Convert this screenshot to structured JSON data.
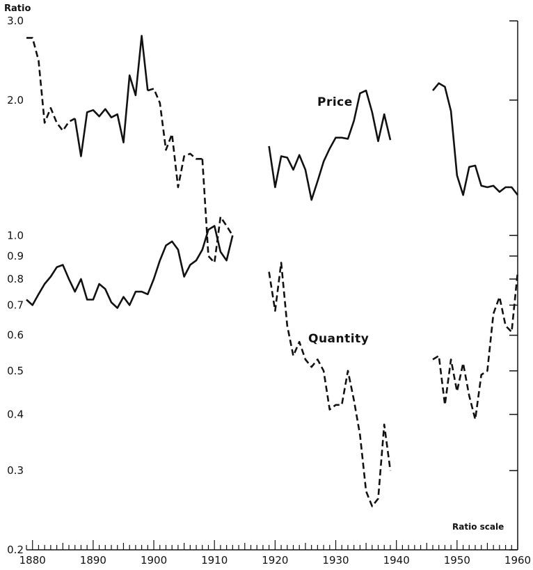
{
  "chart_data": {
    "type": "line",
    "ylabel": "Ratio",
    "scale_note": "Ratio scale",
    "y_scale": "log",
    "ylim": [
      0.2,
      3.0
    ],
    "xlim": [
      1879,
      1960
    ],
    "y_ticks": [
      3.0,
      2.0,
      1.0,
      0.9,
      0.8,
      0.7,
      0.6,
      0.5,
      0.4,
      0.3,
      0.2
    ],
    "y_tick_labels": [
      "3.0",
      "2.0",
      "1.0",
      "0.9",
      "0.8",
      "0.7",
      "0.6",
      "0.5",
      "0.4",
      "0.3",
      "0.2"
    ],
    "x_ticks": [
      1880,
      1890,
      1900,
      1910,
      1920,
      1930,
      1940,
      1950,
      1960
    ],
    "x_tick_labels": [
      "1880",
      "1890",
      "1900",
      "1910",
      "1920",
      "1930",
      "1940",
      "1950",
      "1960"
    ],
    "grid": false,
    "color": "#111111",
    "series": [
      {
        "name": "Price",
        "segments": [
          {
            "style": "dashed",
            "points": [
              [
                1879,
                2.75
              ],
              [
                1880,
                2.75
              ],
              [
                1881,
                2.45
              ],
              [
                1882,
                1.78
              ],
              [
                1883,
                1.92
              ],
              [
                1884,
                1.78
              ],
              [
                1885,
                1.71
              ],
              [
                1886,
                1.79
              ],
              [
                1887,
                1.82
              ]
            ]
          },
          {
            "style": "solid",
            "points": [
              [
                1887,
                1.82
              ],
              [
                1888,
                1.5
              ],
              [
                1889,
                1.88
              ],
              [
                1890,
                1.9
              ],
              [
                1891,
                1.84
              ],
              [
                1892,
                1.91
              ],
              [
                1893,
                1.83
              ],
              [
                1894,
                1.86
              ],
              [
                1895,
                1.61
              ],
              [
                1896,
                2.27
              ],
              [
                1897,
                2.05
              ],
              [
                1898,
                2.78
              ],
              [
                1899,
                2.1
              ]
            ]
          },
          {
            "style": "dashed",
            "points": [
              [
                1899,
                2.1
              ],
              [
                1900,
                2.12
              ],
              [
                1901,
                1.97
              ],
              [
                1902,
                1.55
              ],
              [
                1903,
                1.68
              ],
              [
                1904,
                1.28
              ],
              [
                1905,
                1.5
              ],
              [
                1906,
                1.52
              ],
              [
                1907,
                1.48
              ],
              [
                1908,
                1.48
              ]
            ]
          },
          {
            "style": "dashed",
            "points": [
              [
                1908,
                1.48
              ],
              [
                1909,
                0.9
              ],
              [
                1910,
                0.87
              ],
              [
                1911,
                1.1
              ],
              [
                1912,
                1.05
              ],
              [
                1913,
                1.0
              ]
            ]
          },
          {
            "style": "solid",
            "points": [
              [
                1919,
                1.58
              ],
              [
                1920,
                1.28
              ],
              [
                1921,
                1.5
              ],
              [
                1922,
                1.49
              ],
              [
                1923,
                1.4
              ],
              [
                1924,
                1.51
              ],
              [
                1925,
                1.4
              ],
              [
                1926,
                1.2
              ],
              [
                1927,
                1.32
              ],
              [
                1928,
                1.46
              ],
              [
                1929,
                1.56
              ],
              [
                1930,
                1.65
              ],
              [
                1931,
                1.65
              ],
              [
                1932,
                1.64
              ],
              [
                1933,
                1.8
              ],
              [
                1934,
                2.07
              ],
              [
                1935,
                2.1
              ],
              [
                1936,
                1.88
              ],
              [
                1937,
                1.62
              ],
              [
                1938,
                1.86
              ],
              [
                1939,
                1.63
              ]
            ]
          },
          {
            "style": "solid",
            "points": [
              [
                1946,
                2.1
              ],
              [
                1947,
                2.18
              ],
              [
                1948,
                2.14
              ],
              [
                1949,
                1.89
              ],
              [
                1950,
                1.36
              ],
              [
                1951,
                1.23
              ],
              [
                1952,
                1.42
              ],
              [
                1953,
                1.43
              ],
              [
                1954,
                1.29
              ],
              [
                1955,
                1.28
              ],
              [
                1956,
                1.29
              ],
              [
                1957,
                1.25
              ],
              [
                1958,
                1.28
              ],
              [
                1959,
                1.28
              ],
              [
                1960,
                1.23
              ]
            ]
          }
        ]
      },
      {
        "name": "Quantity",
        "segments": [
          {
            "style": "solid",
            "points": [
              [
                1879,
                0.72
              ],
              [
                1880,
                0.7
              ],
              [
                1881,
                0.74
              ],
              [
                1882,
                0.78
              ],
              [
                1883,
                0.81
              ],
              [
                1884,
                0.85
              ],
              [
                1885,
                0.86
              ],
              [
                1886,
                0.8
              ],
              [
                1887,
                0.75
              ],
              [
                1888,
                0.8
              ],
              [
                1889,
                0.72
              ],
              [
                1890,
                0.72
              ],
              [
                1891,
                0.78
              ],
              [
                1892,
                0.76
              ],
              [
                1893,
                0.71
              ],
              [
                1894,
                0.69
              ],
              [
                1895,
                0.73
              ],
              [
                1896,
                0.7
              ],
              [
                1897,
                0.75
              ],
              [
                1898,
                0.75
              ],
              [
                1899,
                0.74
              ],
              [
                1900,
                0.8
              ],
              [
                1901,
                0.88
              ],
              [
                1902,
                0.95
              ],
              [
                1903,
                0.97
              ],
              [
                1904,
                0.93
              ],
              [
                1905,
                0.81
              ],
              [
                1906,
                0.86
              ],
              [
                1907,
                0.88
              ],
              [
                1908,
                0.93
              ],
              [
                1909,
                1.03
              ],
              [
                1910,
                1.05
              ],
              [
                1911,
                0.92
              ],
              [
                1912,
                0.88
              ],
              [
                1913,
                1.0
              ]
            ]
          },
          {
            "style": "dashed",
            "points": [
              [
                1919,
                0.83
              ],
              [
                1920,
                0.68
              ],
              [
                1921,
                0.87
              ],
              [
                1922,
                0.63
              ],
              [
                1923,
                0.54
              ],
              [
                1924,
                0.58
              ],
              [
                1925,
                0.53
              ],
              [
                1926,
                0.51
              ],
              [
                1927,
                0.53
              ],
              [
                1928,
                0.5
              ],
              [
                1929,
                0.41
              ],
              [
                1930,
                0.42
              ],
              [
                1931,
                0.42
              ],
              [
                1932,
                0.5
              ],
              [
                1933,
                0.43
              ],
              [
                1934,
                0.36
              ],
              [
                1935,
                0.27
              ],
              [
                1936,
                0.25
              ],
              [
                1937,
                0.26
              ],
              [
                1938,
                0.38
              ],
              [
                1939,
                0.3
              ]
            ]
          },
          {
            "style": "dashed",
            "points": [
              [
                1946,
                0.53
              ],
              [
                1947,
                0.54
              ],
              [
                1948,
                0.42
              ],
              [
                1949,
                0.53
              ],
              [
                1950,
                0.45
              ],
              [
                1951,
                0.52
              ],
              [
                1952,
                0.44
              ],
              [
                1953,
                0.39
              ],
              [
                1954,
                0.49
              ],
              [
                1955,
                0.5
              ],
              [
                1956,
                0.67
              ],
              [
                1957,
                0.73
              ],
              [
                1958,
                0.63
              ],
              [
                1959,
                0.61
              ],
              [
                1960,
                0.83
              ]
            ]
          }
        ]
      }
    ]
  }
}
